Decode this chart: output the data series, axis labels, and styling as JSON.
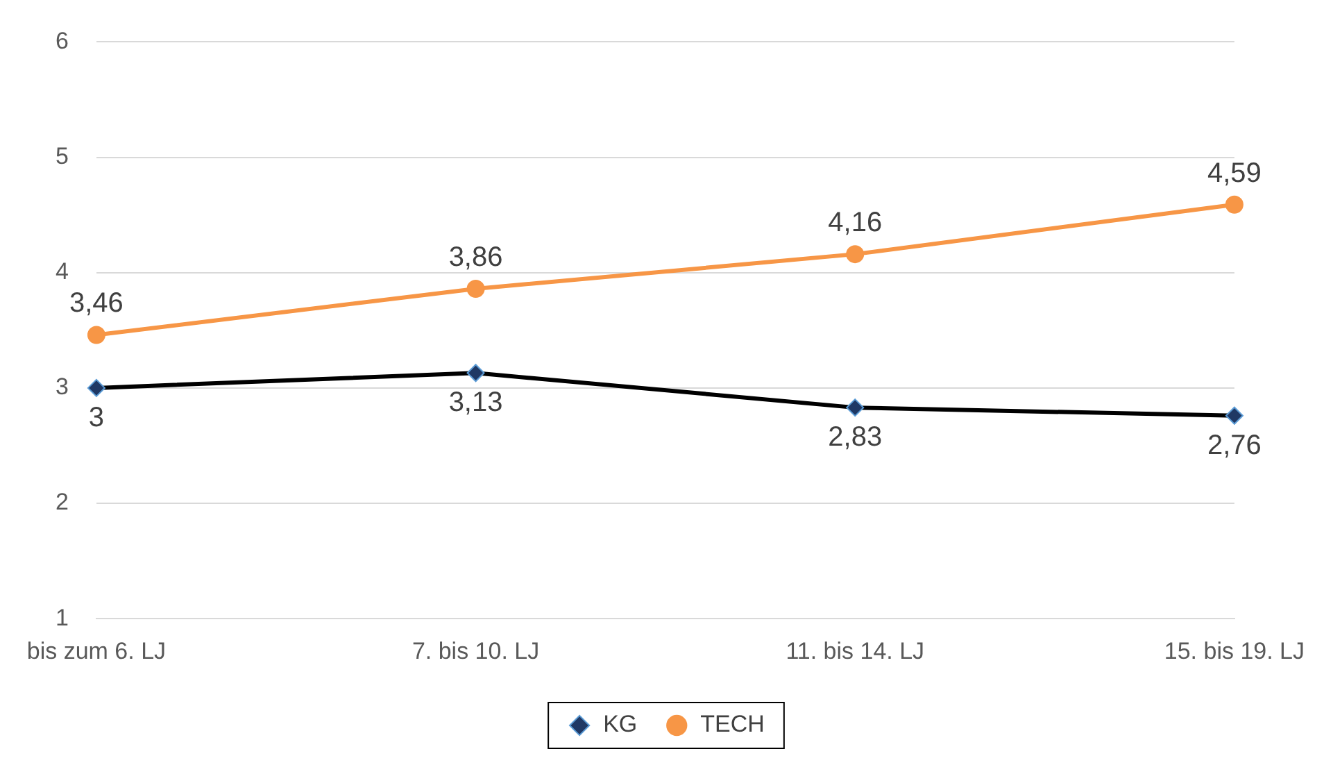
{
  "chart_data": {
    "type": "line",
    "categories": [
      "bis zum 6. LJ",
      "7. bis 10. LJ",
      "11. bis 14. LJ",
      "15. bis 19. LJ"
    ],
    "series": [
      {
        "name": "KG",
        "color": "#000000",
        "marker": "diamond",
        "values": [
          3,
          3.13,
          2.83,
          2.76
        ],
        "value_labels": [
          "3",
          "3,13",
          "2,83",
          "2,76"
        ]
      },
      {
        "name": "TECH",
        "color": "#f79646",
        "marker": "circle",
        "values": [
          3.46,
          3.86,
          4.16,
          4.59
        ],
        "value_labels": [
          "3,46",
          "3,86",
          "4,16",
          "4,59"
        ]
      }
    ],
    "ylim": [
      1,
      6
    ],
    "yticks": [
      1,
      2,
      3,
      4,
      5,
      6
    ],
    "grid": "y",
    "legend": "bottom"
  }
}
